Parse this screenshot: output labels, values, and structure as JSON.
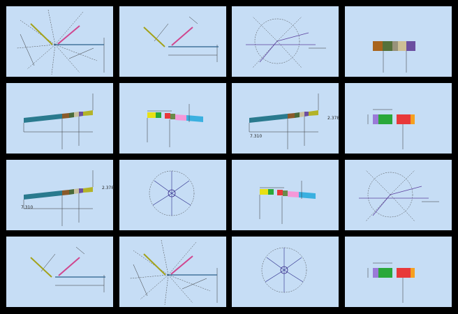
{
  "tiles": [
    {
      "index": 7,
      "labels": [
        "2.378",
        "7.310"
      ]
    },
    {
      "index": 9,
      "labels": [
        "2.378",
        "7.310"
      ]
    }
  ]
}
